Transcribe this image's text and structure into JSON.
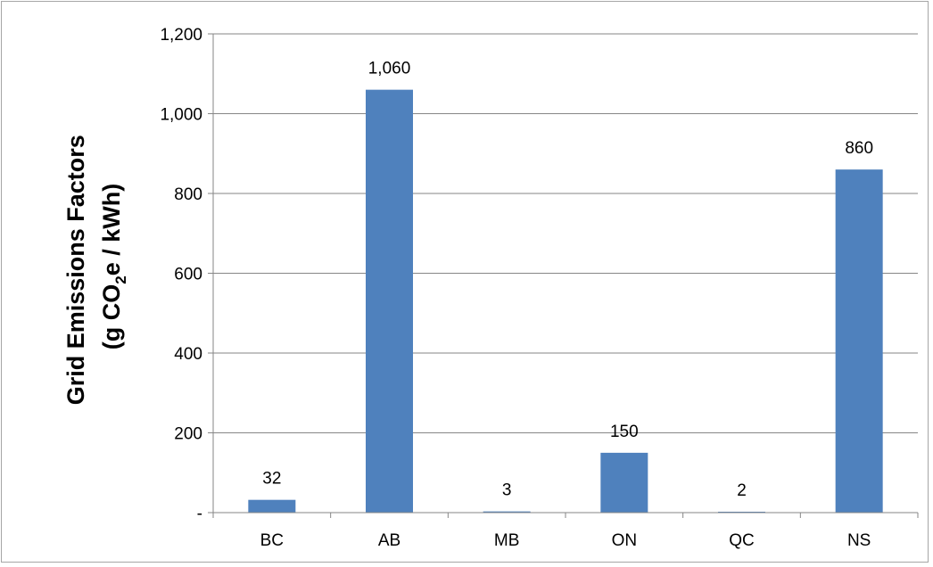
{
  "chart_data": {
    "type": "bar",
    "categories": [
      "BC",
      "AB",
      "MB",
      "ON",
      "QC",
      "NS"
    ],
    "values": [
      32,
      1060,
      3,
      150,
      2,
      860
    ],
    "data_labels": [
      "32",
      "1,060",
      "3",
      "150",
      "2",
      "860"
    ],
    "title": "",
    "xlabel": "",
    "ylabel_line1": "Grid Emissions Factors",
    "ylabel_line2_prefix": "(g CO",
    "ylabel_line2_subscript": "2",
    "ylabel_line2_suffix": "e / kWh)",
    "ylim": [
      0,
      1200
    ],
    "yticks": [
      0,
      200,
      400,
      600,
      800,
      1000,
      1200
    ],
    "ytick_labels": [
      "-",
      "200",
      "400",
      "600",
      "800",
      "1,000",
      "1,200"
    ],
    "grid": true,
    "legend": "none",
    "colors": {
      "bar": "#4F81BD",
      "grid": "#868686",
      "axis": "#868686"
    }
  }
}
